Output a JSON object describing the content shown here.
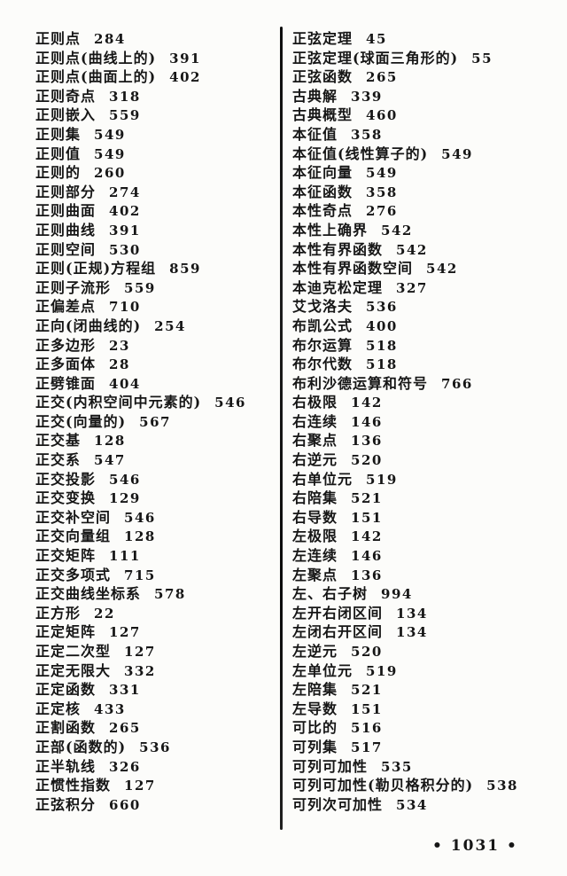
{
  "page": {
    "footer_page_number": "• 1031 •"
  },
  "columns": [
    {
      "entries": [
        {
          "term": "正则点",
          "page": "284"
        },
        {
          "term": "正则点(曲线上的)",
          "page": "391"
        },
        {
          "term": "正则点(曲面上的)",
          "page": "402"
        },
        {
          "term": "正则奇点",
          "page": "318"
        },
        {
          "term": "正则嵌入",
          "page": "559"
        },
        {
          "term": "正则集",
          "page": "549"
        },
        {
          "term": "正则值",
          "page": "549"
        },
        {
          "term": "正则的",
          "page": "260"
        },
        {
          "term": "正则部分",
          "page": "274"
        },
        {
          "term": "正则曲面",
          "page": "402"
        },
        {
          "term": "正则曲线",
          "page": "391"
        },
        {
          "term": "正则空间",
          "page": "530"
        },
        {
          "term": "正则(正规)方程组",
          "page": "859"
        },
        {
          "term": "正则子流形",
          "page": "559"
        },
        {
          "term": "正偏差点",
          "page": "710"
        },
        {
          "term": "正向(闭曲线的)",
          "page": "254"
        },
        {
          "term": "正多边形",
          "page": "23"
        },
        {
          "term": "正多面体",
          "page": "28"
        },
        {
          "term": "正劈锥面",
          "page": "404"
        },
        {
          "term": "正交(内积空间中元素的)",
          "page": "546"
        },
        {
          "term": "正交(向量的)",
          "page": "567"
        },
        {
          "term": "正交基",
          "page": "128"
        },
        {
          "term": "正交系",
          "page": "547"
        },
        {
          "term": "正交投影",
          "page": "546"
        },
        {
          "term": "正交变换",
          "page": "129"
        },
        {
          "term": "正交补空间",
          "page": "546"
        },
        {
          "term": "正交向量组",
          "page": "128"
        },
        {
          "term": "正交矩阵",
          "page": "111"
        },
        {
          "term": "正交多项式",
          "page": "715"
        },
        {
          "term": "正交曲线坐标系",
          "page": "578"
        },
        {
          "term": "正方形",
          "page": "22"
        },
        {
          "term": "正定矩阵",
          "page": "127"
        },
        {
          "term": "正定二次型",
          "page": "127"
        },
        {
          "term": "正定无限大",
          "page": "332"
        },
        {
          "term": "正定函数",
          "page": "331"
        },
        {
          "term": "正定核",
          "page": "433"
        },
        {
          "term": "正割函数",
          "page": "265"
        },
        {
          "term": "正部(函数的)",
          "page": "536"
        },
        {
          "term": "正半轨线",
          "page": "326"
        },
        {
          "term": "正惯性指数",
          "page": "127"
        },
        {
          "term": "正弦积分",
          "page": "660"
        }
      ]
    },
    {
      "entries": [
        {
          "term": "正弦定理",
          "page": "45"
        },
        {
          "term": "正弦定理(球面三角形的)",
          "page": "55"
        },
        {
          "term": "正弦函数",
          "page": "265"
        },
        {
          "term": "古典解",
          "page": "339"
        },
        {
          "term": "古典概型",
          "page": "460"
        },
        {
          "term": "本征值",
          "page": "358"
        },
        {
          "term": "本征值(线性算子的)",
          "page": "549"
        },
        {
          "term": "本征向量",
          "page": "549"
        },
        {
          "term": "本征函数",
          "page": "358"
        },
        {
          "term": "本性奇点",
          "page": "276"
        },
        {
          "term": "本性上确界",
          "page": "542"
        },
        {
          "term": "本性有界函数",
          "page": "542"
        },
        {
          "term": "本性有界函数空间",
          "page": "542"
        },
        {
          "term": "本迪克松定理",
          "page": "327"
        },
        {
          "term": "艾戈洛夫",
          "page": "536"
        },
        {
          "term": "布凯公式",
          "page": "400"
        },
        {
          "term": "布尔运算",
          "page": "518"
        },
        {
          "term": "布尔代数",
          "page": "518"
        },
        {
          "term": "布利沙德运算和符号",
          "page": "766"
        },
        {
          "term": "右极限",
          "page": "142"
        },
        {
          "term": "右连续",
          "page": "146"
        },
        {
          "term": "右聚点",
          "page": "136"
        },
        {
          "term": "右逆元",
          "page": "520"
        },
        {
          "term": "右单位元",
          "page": "519"
        },
        {
          "term": "右陪集",
          "page": "521"
        },
        {
          "term": "右导数",
          "page": "151"
        },
        {
          "term": "左极限",
          "page": "142"
        },
        {
          "term": "左连续",
          "page": "146"
        },
        {
          "term": "左聚点",
          "page": "136"
        },
        {
          "term": "左、右子树",
          "page": "994"
        },
        {
          "term": "左开右闭区间",
          "page": "134"
        },
        {
          "term": "左闭右开区间",
          "page": "134"
        },
        {
          "term": "左逆元",
          "page": "520"
        },
        {
          "term": "左单位元",
          "page": "519"
        },
        {
          "term": "左陪集",
          "page": "521"
        },
        {
          "term": "左导数",
          "page": "151"
        },
        {
          "term": "可比的",
          "page": "516"
        },
        {
          "term": "可列集",
          "page": "517"
        },
        {
          "term": "可列可加性",
          "page": "535"
        },
        {
          "term": "可列可加性(勒贝格积分的)",
          "page": "538"
        },
        {
          "term": "可列次可加性",
          "page": "534"
        }
      ]
    }
  ]
}
